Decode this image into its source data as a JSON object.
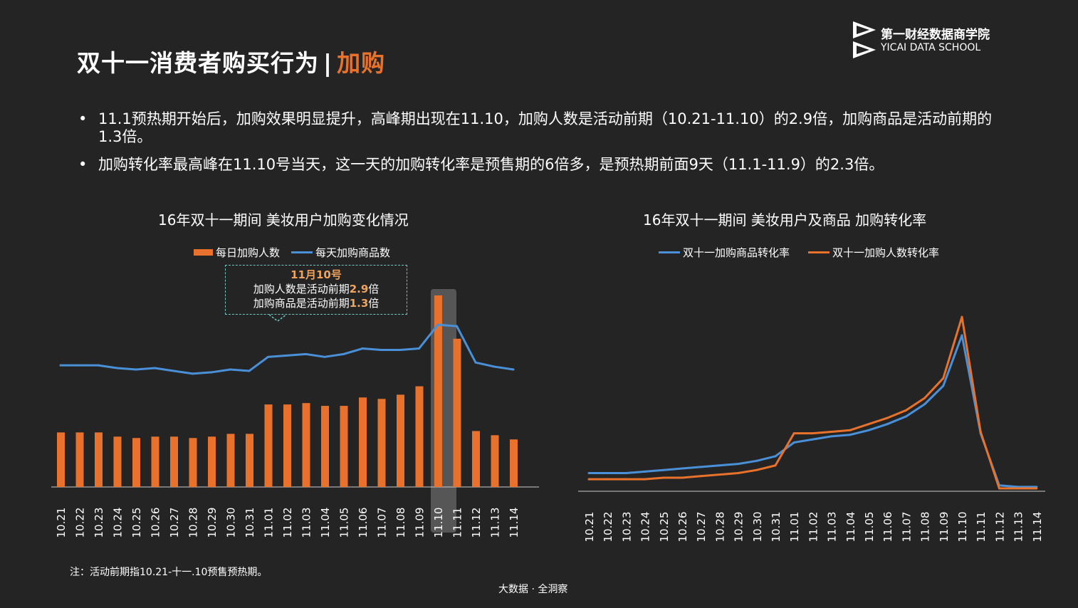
{
  "header": {
    "title_main": "双十一消费者购买行为",
    "title_sep": "|",
    "title_accent": "加购"
  },
  "brand": {
    "name": "第一财经数据商学院",
    "sub": "YICAI DATA SCHOOL"
  },
  "bullets": [
    "11.1预热期开始后，加购效果明显提升，高峰期出现在11.10，加购人数是活动前期（10.21-11.10）的2.9倍，加购商品是活动前期的1.3倍。",
    "加购转化率最高峰在11.10号当天，这一天的加购转化率是预售期的6倍多，是预热期前面9天（11.1-11.9）的2.3倍。"
  ],
  "bullet_symbol": "•",
  "colors": {
    "orange": "#e8722c",
    "blue": "#4a90d9",
    "background": "#242424",
    "callout_border": "#6fc7c2"
  },
  "callout": {
    "title": "11月10号",
    "line1_prefix": "加购人数是活动前期",
    "line1_value": "2.9",
    "line1_suffix": "倍",
    "line2_prefix": "加购商品是活动前期",
    "line2_value": "1.3",
    "line2_suffix": "倍"
  },
  "note": "注：活动前期指10.21-十一.10预售预热期。",
  "footer": "大数据 · 全洞察",
  "chart_data": [
    {
      "type": "bar",
      "title": "16年双十一期间 美妆用户加购变化情况",
      "categories": [
        "10.21",
        "10.22",
        "10.23",
        "10.24",
        "10.25",
        "10.26",
        "10.27",
        "10.28",
        "10.29",
        "10.30",
        "10.31",
        "11.01",
        "11.02",
        "11.03",
        "11.04",
        "11.05",
        "11.06",
        "11.07",
        "11.08",
        "11.09",
        "11.10",
        "11.11",
        "11.12",
        "11.13",
        "11.14"
      ],
      "series": [
        {
          "name": "每日加购人数",
          "kind": "bar",
          "color": "#e8722c",
          "values": [
            78,
            78,
            78,
            72,
            70,
            72,
            72,
            70,
            72,
            76,
            76,
            118,
            118,
            120,
            116,
            116,
            128,
            126,
            132,
            144,
            274,
            212,
            80,
            74,
            68
          ]
        },
        {
          "name": "每天加购商品数",
          "kind": "line",
          "color": "#4a90d9",
          "values": [
            174,
            174,
            174,
            170,
            168,
            170,
            166,
            162,
            164,
            168,
            166,
            186,
            188,
            190,
            186,
            190,
            198,
            196,
            196,
            198,
            232,
            230,
            178,
            172,
            168
          ]
        }
      ],
      "ylim": [
        0,
        280
      ],
      "highlight_category": "11.10",
      "legend_position": "top"
    },
    {
      "type": "line",
      "title": "16年双十一期间   美妆用户及商品  加购转化率",
      "categories": [
        "10.21",
        "10.22",
        "10.23",
        "10.24",
        "10.25",
        "10.26",
        "10.27",
        "10.28",
        "10.29",
        "10.30",
        "10.31",
        "11.01",
        "11.02",
        "11.03",
        "11.04",
        "11.05",
        "11.06",
        "11.07",
        "11.08",
        "11.09",
        "11.10",
        "11.11",
        "11.12",
        "11.13",
        "11.14"
      ],
      "series": [
        {
          "name": "双十一加购商品转化率",
          "color": "#4a90d9",
          "values": [
            10,
            10,
            10,
            11,
            12,
            13,
            14,
            15,
            16,
            18,
            21,
            30,
            32,
            34,
            35,
            38,
            42,
            47,
            55,
            67,
            100,
            36,
            2,
            1,
            1
          ]
        },
        {
          "name": "双十一加购人数转化率",
          "color": "#e8722c",
          "values": [
            6,
            6,
            6,
            6,
            7,
            7,
            8,
            9,
            10,
            12,
            15,
            36,
            36,
            37,
            38,
            42,
            46,
            51,
            59,
            72,
            112,
            37,
            0,
            0,
            0
          ]
        }
      ],
      "ylim": [
        0,
        120
      ],
      "legend_position": "top"
    }
  ]
}
